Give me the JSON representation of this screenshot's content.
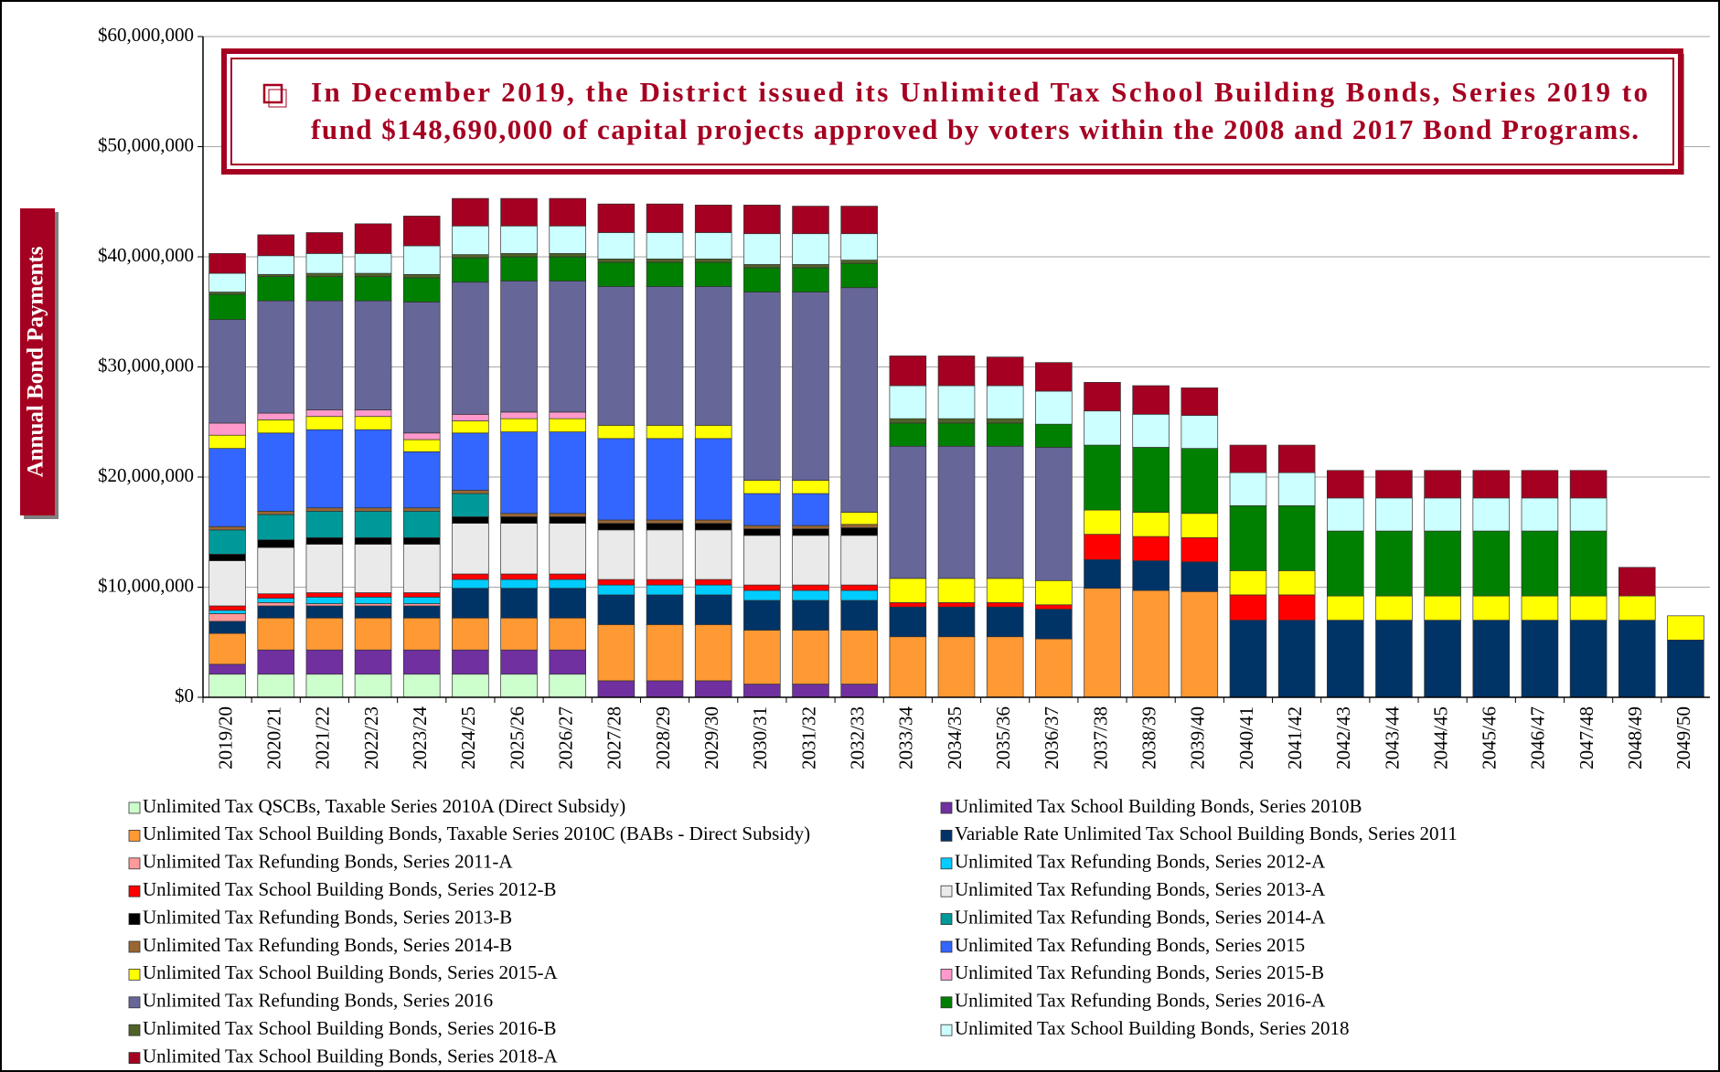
{
  "chart_data": {
    "type": "stacked_bar",
    "y_label": "Annual Bond Payments",
    "annotation": [
      "In December 2019, the District issued its Unlimited Tax School Building Bonds, Series 2019 to",
      "fund $148,690,000 of capital projects approved by voters within the 2008 and 2017 Bond Programs."
    ],
    "categories": [
      "2019/20",
      "2020/21",
      "2021/22",
      "2022/23",
      "2023/24",
      "2024/25",
      "2025/26",
      "2026/27",
      "2027/28",
      "2028/29",
      "2029/30",
      "2030/31",
      "2031/32",
      "2032/33",
      "2033/34",
      "2034/35",
      "2035/36",
      "2036/37",
      "2037/38",
      "2038/39",
      "2039/40",
      "2040/41",
      "2041/42",
      "2042/43",
      "2043/44",
      "2044/45",
      "2045/46",
      "2046/47",
      "2047/48",
      "2048/49",
      "2049/50"
    ],
    "ylim": [
      0,
      60000000
    ],
    "yticks": [
      {
        "value": 0,
        "label": "$0"
      },
      {
        "value": 10000000,
        "label": "$10,000,000"
      },
      {
        "value": 20000000,
        "label": "$20,000,000"
      },
      {
        "value": 30000000,
        "label": "$30,000,000"
      },
      {
        "value": 40000000,
        "label": "$40,000,000"
      },
      {
        "value": 50000000,
        "label": "$50,000,000"
      },
      {
        "value": 60000000,
        "label": "$60,000,000"
      }
    ],
    "grid": true,
    "series": [
      {
        "name": "Unlimited Tax QSCBs, Taxable Series 2010A (Direct Subsidy)",
        "color": "#ccffcc",
        "values": [
          2100000,
          2100000,
          2100000,
          2100000,
          2100000,
          2100000,
          2100000,
          2100000,
          0,
          0,
          0,
          0,
          0,
          0,
          0,
          0,
          0,
          0,
          0,
          0,
          0,
          0,
          0,
          0,
          0,
          0,
          0,
          0,
          0,
          0,
          0
        ]
      },
      {
        "name": "Unlimited Tax School Building Bonds, Series 2010B",
        "color": "#7030a0",
        "values": [
          900000,
          2200000,
          2200000,
          2200000,
          2200000,
          2200000,
          2200000,
          2200000,
          1500000,
          1500000,
          1500000,
          1200000,
          1200000,
          1200000,
          0,
          0,
          0,
          0,
          0,
          0,
          0,
          0,
          0,
          0,
          0,
          0,
          0,
          0,
          0,
          0,
          0
        ]
      },
      {
        "name": "Unlimited Tax School Building Bonds, Taxable Series 2010C (BABs - Direct Subsidy)",
        "color": "#ff9933",
        "values": [
          2800000,
          2900000,
          2900000,
          2900000,
          2900000,
          2900000,
          2900000,
          2900000,
          5100000,
          5100000,
          5100000,
          4900000,
          4900000,
          4900000,
          5500000,
          5500000,
          5500000,
          5300000,
          9900000,
          9700000,
          9600000,
          0,
          0,
          0,
          0,
          0,
          0,
          0,
          0,
          0,
          0
        ]
      },
      {
        "name": "Variable Rate Unlimited Tax School Building Bonds, Series 2011",
        "color": "#003366",
        "values": [
          1100000,
          1100000,
          1100000,
          1100000,
          1100000,
          2700000,
          2700000,
          2700000,
          2700000,
          2700000,
          2700000,
          2700000,
          2700000,
          2700000,
          2700000,
          2700000,
          2700000,
          2700000,
          2600000,
          2700000,
          2700000,
          7000000,
          7000000,
          7000000,
          7000000,
          7000000,
          7000000,
          7000000,
          7000000,
          7000000,
          5200000
        ]
      },
      {
        "name": "Unlimited Tax Refunding Bonds, Series 2011-A",
        "color": "#ff9999",
        "values": [
          700000,
          300000,
          200000,
          200000,
          200000,
          0,
          0,
          0,
          0,
          0,
          0,
          0,
          0,
          0,
          0,
          0,
          0,
          0,
          0,
          0,
          0,
          0,
          0,
          0,
          0,
          0,
          0,
          0,
          0,
          0,
          0
        ]
      },
      {
        "name": "Unlimited Tax Refunding Bonds, Series 2012-A",
        "color": "#00ccff",
        "values": [
          300000,
          400000,
          600000,
          600000,
          600000,
          800000,
          800000,
          800000,
          900000,
          900000,
          900000,
          900000,
          900000,
          900000,
          0,
          0,
          0,
          0,
          0,
          0,
          0,
          0,
          0,
          0,
          0,
          0,
          0,
          0,
          0,
          0,
          0
        ]
      },
      {
        "name": "Unlimited Tax School Building Bonds, Series 2012-B",
        "color": "#ff0000",
        "values": [
          400000,
          400000,
          400000,
          400000,
          400000,
          500000,
          500000,
          500000,
          500000,
          500000,
          500000,
          500000,
          500000,
          500000,
          400000,
          400000,
          400000,
          400000,
          2300000,
          2200000,
          2200000,
          2300000,
          2300000,
          0,
          0,
          0,
          0,
          0,
          0,
          0,
          0
        ]
      },
      {
        "name": "Unlimited Tax Refunding Bonds, Series 2013-A",
        "color": "#eaeaea",
        "values": [
          4100000,
          4200000,
          4400000,
          4400000,
          4400000,
          4600000,
          4600000,
          4600000,
          4500000,
          4500000,
          4500000,
          4500000,
          4500000,
          4500000,
          0,
          0,
          0,
          0,
          0,
          0,
          0,
          0,
          0,
          0,
          0,
          0,
          0,
          0,
          0,
          0,
          0
        ]
      },
      {
        "name": "Unlimited Tax Refunding Bonds, Series 2013-B",
        "color": "#000000",
        "values": [
          600000,
          700000,
          600000,
          600000,
          600000,
          600000,
          600000,
          600000,
          600000,
          600000,
          600000,
          600000,
          600000,
          700000,
          0,
          0,
          0,
          0,
          0,
          0,
          0,
          0,
          0,
          0,
          0,
          0,
          0,
          0,
          0,
          0,
          0
        ]
      },
      {
        "name": "Unlimited Tax Refunding Bonds, Series 2014-A",
        "color": "#009999",
        "values": [
          2200000,
          2300000,
          2400000,
          2400000,
          2400000,
          2100000,
          0,
          0,
          0,
          0,
          0,
          0,
          0,
          0,
          0,
          0,
          0,
          0,
          0,
          0,
          0,
          0,
          0,
          0,
          0,
          0,
          0,
          0,
          0,
          0,
          0
        ]
      },
      {
        "name": "Unlimited Tax Refunding Bonds, Series 2014-B",
        "color": "#996633",
        "values": [
          300000,
          300000,
          300000,
          300000,
          300000,
          300000,
          300000,
          300000,
          300000,
          300000,
          300000,
          300000,
          300000,
          300000,
          0,
          0,
          0,
          0,
          0,
          0,
          0,
          0,
          0,
          0,
          0,
          0,
          0,
          0,
          0,
          0,
          0
        ]
      },
      {
        "name": "Unlimited Tax Refunding Bonds, Series 2015",
        "color": "#3366ff",
        "values": [
          7100000,
          7100000,
          7100000,
          7100000,
          5100000,
          5200000,
          7400000,
          7400000,
          7400000,
          7400000,
          7400000,
          2900000,
          2900000,
          0,
          0,
          0,
          0,
          0,
          0,
          0,
          0,
          0,
          0,
          0,
          0,
          0,
          0,
          0,
          0,
          0,
          0
        ]
      },
      {
        "name": "Unlimited Tax School Building Bonds, Series 2015-A",
        "color": "#ffff00",
        "values": [
          1200000,
          1200000,
          1200000,
          1200000,
          1100000,
          1100000,
          1200000,
          1200000,
          1200000,
          1200000,
          1200000,
          1200000,
          1200000,
          1100000,
          2200000,
          2200000,
          2200000,
          2200000,
          2200000,
          2200000,
          2200000,
          2200000,
          2200000,
          2200000,
          2200000,
          2200000,
          2200000,
          2200000,
          2200000,
          2200000,
          2200000
        ]
      },
      {
        "name": "Unlimited Tax Refunding Bonds, Series 2015-B",
        "color": "#ff99cc",
        "values": [
          1100000,
          600000,
          600000,
          600000,
          600000,
          600000,
          600000,
          600000,
          0,
          0,
          0,
          0,
          0,
          0,
          0,
          0,
          0,
          0,
          0,
          0,
          0,
          0,
          0,
          0,
          0,
          0,
          0,
          0,
          0,
          0,
          0
        ]
      },
      {
        "name": "Unlimited Tax Refunding Bonds, Series 2016",
        "color": "#666699",
        "values": [
          9400000,
          10200000,
          9900000,
          9900000,
          11900000,
          12000000,
          11900000,
          11900000,
          12600000,
          12600000,
          12600000,
          17100000,
          17100000,
          20400000,
          12000000,
          12000000,
          12000000,
          12100000,
          0,
          0,
          0,
          0,
          0,
          0,
          0,
          0,
          0,
          0,
          0,
          0,
          0
        ]
      },
      {
        "name": "Unlimited Tax Refunding Bonds, Series 2016-A",
        "color": "#008000",
        "values": [
          2300000,
          2200000,
          2200000,
          2200000,
          2200000,
          2200000,
          2200000,
          2200000,
          2200000,
          2200000,
          2200000,
          2200000,
          2200000,
          2200000,
          2100000,
          2100000,
          2100000,
          2100000,
          5900000,
          5900000,
          5900000,
          5900000,
          5900000,
          5900000,
          5900000,
          5900000,
          5900000,
          5900000,
          5900000,
          0,
          0
        ]
      },
      {
        "name": "Unlimited Tax School Building Bonds, Series 2016-B",
        "color": "#4f6228",
        "values": [
          200000,
          200000,
          300000,
          300000,
          300000,
          300000,
          300000,
          300000,
          300000,
          300000,
          300000,
          300000,
          300000,
          300000,
          400000,
          400000,
          400000,
          0,
          0,
          0,
          0,
          0,
          0,
          0,
          0,
          0,
          0,
          0,
          0,
          0,
          0
        ]
      },
      {
        "name": "Unlimited Tax School Building Bonds, Series 2018",
        "color": "#ccffff",
        "values": [
          1700000,
          1700000,
          1800000,
          1800000,
          2600000,
          2600000,
          2500000,
          2500000,
          2400000,
          2400000,
          2400000,
          2800000,
          2800000,
          2400000,
          3000000,
          3000000,
          3000000,
          3000000,
          3100000,
          3000000,
          3000000,
          3000000,
          3000000,
          3000000,
          3000000,
          3000000,
          3000000,
          3000000,
          3000000,
          0,
          0
        ]
      },
      {
        "name": "Unlimited Tax School Building Bonds, Series 2018-A",
        "color": "#a50021",
        "values": [
          1800000,
          1900000,
          1900000,
          2700000,
          2700000,
          2500000,
          2500000,
          2500000,
          2600000,
          2600000,
          2500000,
          2600000,
          2500000,
          2500000,
          2700000,
          2700000,
          2600000,
          2600000,
          2600000,
          2600000,
          2500000,
          2500000,
          2500000,
          2500000,
          2500000,
          2500000,
          2500000,
          2500000,
          2500000,
          2600000,
          0
        ]
      }
    ]
  }
}
